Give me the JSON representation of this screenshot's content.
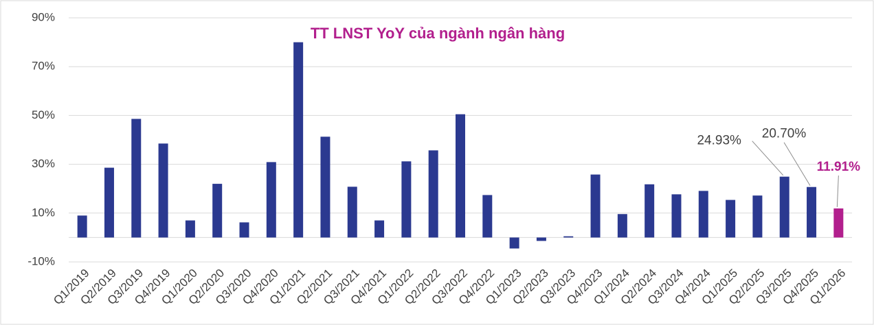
{
  "chart_data": {
    "type": "bar",
    "title": "TT LNST YoY của ngành ngân hàng",
    "categories": [
      "Q1/2019",
      "Q2/2019",
      "Q3/2019",
      "Q4/2019",
      "Q1/2020",
      "Q2/2020",
      "Q3/2020",
      "Q4/2020",
      "Q1/2021",
      "Q2/2021",
      "Q3/2021",
      "Q4/2021",
      "Q1/2022",
      "Q2/2022",
      "Q3/2022",
      "Q4/2022",
      "Q1/2023",
      "Q2/2023",
      "Q3/2023",
      "Q4/2023",
      "Q1/2024",
      "Q2/2024",
      "Q3/2024",
      "Q4/2024",
      "Q1/2025",
      "Q2/2025",
      "Q3/2025",
      "Q4/2025",
      "Q1/2026"
    ],
    "values": [
      9,
      28.6,
      48.6,
      38.5,
      7,
      22,
      6.2,
      30.9,
      80,
      41.3,
      20.8,
      7,
      31.2,
      35.7,
      50.5,
      17.4,
      -4.5,
      -1.4,
      0.5,
      25.8,
      9.6,
      21.8,
      17.7,
      19.1,
      15.4,
      17.2,
      24.93,
      20.7,
      11.91
    ],
    "value_labels": [
      null,
      null,
      null,
      null,
      null,
      null,
      null,
      null,
      null,
      null,
      null,
      null,
      null,
      null,
      null,
      null,
      null,
      null,
      null,
      null,
      null,
      null,
      null,
      null,
      null,
      null,
      "24.93%",
      "20.70%",
      "11.91%"
    ],
    "colors": [
      "#2b3990",
      "#2b3990",
      "#2b3990",
      "#2b3990",
      "#2b3990",
      "#2b3990",
      "#2b3990",
      "#2b3990",
      "#2b3990",
      "#2b3990",
      "#2b3990",
      "#2b3990",
      "#2b3990",
      "#2b3990",
      "#2b3990",
      "#2b3990",
      "#2b3990",
      "#2b3990",
      "#2b3990",
      "#2b3990",
      "#2b3990",
      "#2b3990",
      "#2b3990",
      "#2b3990",
      "#2b3990",
      "#2b3990",
      "#2b3990",
      "#2b3990",
      "#b21f8d"
    ],
    "value_label_colors": [
      null,
      null,
      null,
      null,
      null,
      null,
      null,
      null,
      null,
      null,
      null,
      null,
      null,
      null,
      null,
      null,
      null,
      null,
      null,
      null,
      null,
      null,
      null,
      null,
      null,
      null,
      "#404040",
      "#404040",
      "#b21f8d"
    ],
    "ylim": [
      -10,
      90
    ],
    "yticks": [
      {
        "value": -10,
        "label": "-10%"
      },
      {
        "value": 10,
        "label": "10%"
      },
      {
        "value": 30,
        "label": "30%"
      },
      {
        "value": 50,
        "label": "50%"
      },
      {
        "value": 70,
        "label": "70%"
      },
      {
        "value": 90,
        "label": "90%"
      }
    ],
    "grid": true
  }
}
